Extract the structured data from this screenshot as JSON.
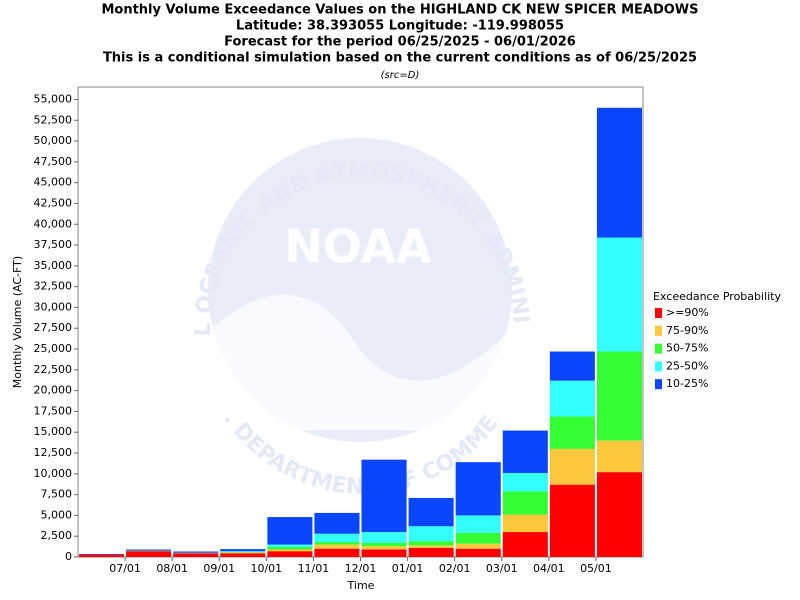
{
  "chart_data": {
    "type": "stacked_bar",
    "title": [
      "Monthly Volume Exceedance Values on the HIGHLAND CK NEW SPICER MEADOWS",
      "Latitude: 38.393055 Longitude: -119.998055",
      "Forecast for the period 06/25/2025 - 06/01/2026",
      "This is a conditional simulation based on the current conditions as of 06/25/2025"
    ],
    "subtitle": "(src=D)",
    "xlabel": "Time",
    "ylabel": "Monthly Volume (AC-FT)",
    "legend_title": "Exceedance Probability",
    "legend": "right",
    "watermark": [
      "NOAA",
      "NATIONAL OCEANIC AND ATMOSPHERIC ADMINISTRATION",
      "U.S. DEPARTMENT OF COMMERCE"
    ],
    "categories": [
      null,
      null,
      null,
      null,
      null,
      null,
      null,
      null,
      null,
      null,
      null,
      null
    ],
    "x_tick_labels": [
      "07/01",
      "08/01",
      "09/01",
      "10/01",
      "11/01",
      "12/01",
      "01/01",
      "02/01",
      "03/01",
      "04/01",
      "05/01"
    ],
    "series": [
      {
        "name": ">=90%",
        "color": "#ff0000",
        "values": [
          300,
          700,
          450,
          450,
          700,
          1000,
          900,
          1100,
          1000,
          3000,
          8700,
          10200
        ]
      },
      {
        "name": "75-90%",
        "color": "#ffc83c",
        "values": [
          0,
          20,
          20,
          100,
          200,
          500,
          400,
          300,
          600,
          2100,
          4300,
          3800
        ]
      },
      {
        "name": "50-75%",
        "color": "#33ff33",
        "values": [
          0,
          20,
          20,
          50,
          300,
          300,
          400,
          500,
          1300,
          2800,
          3900,
          10700
        ]
      },
      {
        "name": "25-50%",
        "color": "#33ffff",
        "values": [
          0,
          20,
          20,
          100,
          300,
          1000,
          1300,
          1800,
          2100,
          2200,
          4300,
          13700
        ]
      },
      {
        "name": "10-25%",
        "color": "#0a46ff",
        "values": [
          50,
          140,
          150,
          250,
          3300,
          2500,
          8700,
          3400,
          6400,
          5100,
          3500,
          15600
        ]
      }
    ],
    "ylim": [
      0,
      56500
    ],
    "yticks": [
      0,
      {
        "value": 2500,
        "label": "2,500"
      },
      {
        "value": 5000,
        "label": "5,000"
      },
      {
        "value": 7500,
        "label": "7,500"
      },
      {
        "value": 10000,
        "label": "10,000"
      },
      {
        "value": 12500,
        "label": "12,500"
      },
      {
        "value": 15000,
        "label": "15,000"
      },
      {
        "value": 17500,
        "label": "17,500"
      },
      {
        "value": 20000,
        "label": "20,000"
      },
      {
        "value": 22500,
        "label": "22,500"
      },
      {
        "value": 25000,
        "label": "25,000"
      },
      {
        "value": 27500,
        "label": "27,500"
      },
      {
        "value": 30000,
        "label": "30,000"
      },
      {
        "value": 32500,
        "label": "32,500"
      },
      {
        "value": 35000,
        "label": "35,000"
      },
      {
        "value": 37500,
        "label": "37,500"
      },
      {
        "value": 40000,
        "label": "40,000"
      },
      {
        "value": 42500,
        "label": "42,500"
      },
      {
        "value": 45000,
        "label": "45,000"
      },
      {
        "value": 47500,
        "label": "47,500"
      },
      {
        "value": 50000,
        "label": "50,000"
      },
      {
        "value": 52500,
        "label": "52,500"
      },
      {
        "value": 55000,
        "label": "55,000"
      }
    ]
  }
}
